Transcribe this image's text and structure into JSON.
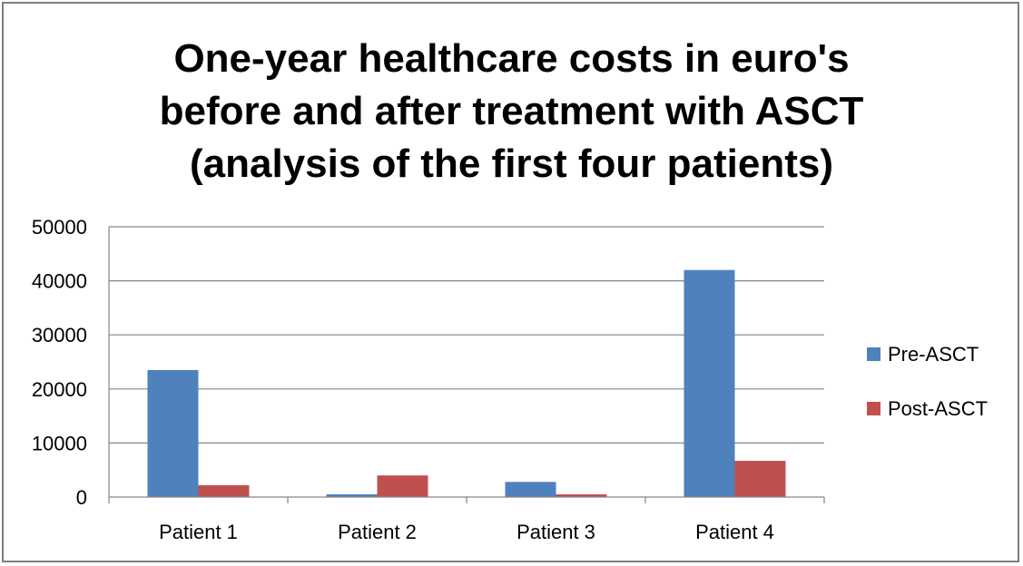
{
  "chart_data": {
    "type": "bar",
    "title_lines": [
      "One-year healthcare costs in euro's",
      "before and after treatment with ASCT",
      "(analysis of the first four patients)"
    ],
    "categories": [
      "Patient 1",
      "Patient 2",
      "Patient 3",
      "Patient 4"
    ],
    "series": [
      {
        "name": "Pre-ASCT",
        "color": "#4f81bd",
        "values": [
          23500,
          500,
          2800,
          42000
        ]
      },
      {
        "name": "Post-ASCT",
        "color": "#c0504d",
        "values": [
          2200,
          4000,
          500,
          6700
        ]
      }
    ],
    "ylim": [
      0,
      50000
    ],
    "yticks": [
      0,
      10000,
      20000,
      30000,
      40000,
      50000
    ],
    "xlabel": "",
    "ylabel": "",
    "grid": true,
    "gridline_color": "#868686",
    "legend_position": "right"
  }
}
